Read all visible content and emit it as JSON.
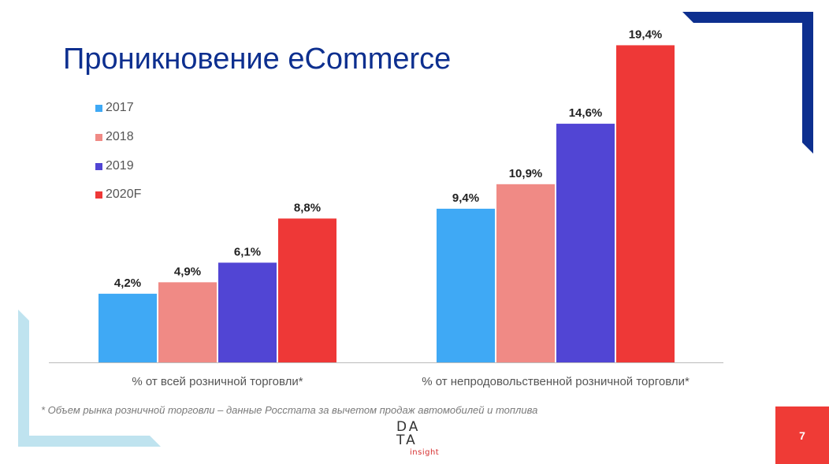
{
  "title": "Проникновение eCommerce",
  "footnote": "* Объем рынка розничной торговли – данные Росстата за вычетом продаж автомобилей и топлива",
  "logo": {
    "line1": "DA",
    "line2": "TA",
    "line3": "insight"
  },
  "page_number": "7",
  "colors": {
    "title": "#0d2f8f",
    "accent_navy": "#0d2f8f",
    "accent_light_blue": "#bfe3ef",
    "page_badge": "#ef3b36"
  },
  "chart_data": {
    "type": "bar",
    "categories": [
      "% от всей розничной торговли*",
      "% от непродовольственной розничной торговли*"
    ],
    "series": [
      {
        "name": "2017",
        "color": "#3fa9f5",
        "values": [
          4.2,
          9.4
        ],
        "labels": [
          "4,2%",
          "9,4%"
        ]
      },
      {
        "name": "2018",
        "color": "#f08a85",
        "values": [
          4.9,
          10.9
        ],
        "labels": [
          "4,9%",
          "10,9%"
        ]
      },
      {
        "name": "2019",
        "color": "#5145d4",
        "values": [
          6.1,
          14.6
        ],
        "labels": [
          "6,1%",
          "14,6%"
        ]
      },
      {
        "name": "2020F",
        "color": "#ee3837",
        "values": [
          8.8,
          19.4
        ],
        "labels": [
          "8,8%",
          "19,4%"
        ]
      }
    ],
    "ylim": [
      0,
      20
    ],
    "grid": false,
    "legend": "top-left"
  }
}
